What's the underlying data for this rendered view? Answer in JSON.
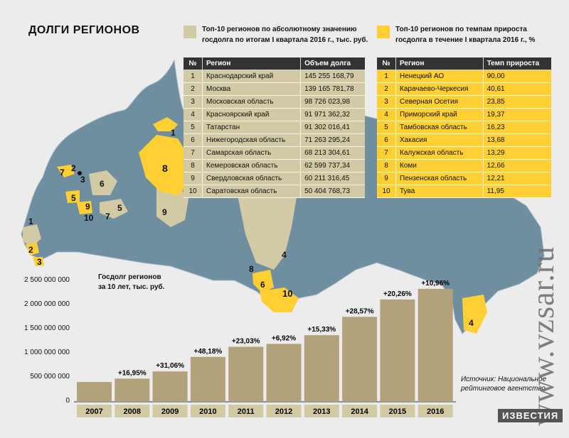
{
  "title": "ДОЛГИ РЕГИОНОВ",
  "colors": {
    "map": "#6f8fa0",
    "tan": "#d2caa4",
    "yellow": "#ffcf33",
    "bar": "#b1a27c"
  },
  "legend1": {
    "line1": "Топ-10 регионов по абсолютному значению",
    "line2": "госдолга по итогам I квартала 2016 г., тыс. руб."
  },
  "legend2": {
    "line1": "Топ-10 регионов по темпам прироста",
    "line2": "госдолга в течение I квартала 2016 г., %"
  },
  "table1": {
    "headers": [
      "№",
      "Регион",
      "Объем долга"
    ],
    "rows": [
      [
        "1",
        "Краснодарский край",
        "145 255 168,79"
      ],
      [
        "2",
        "Москва",
        "139 165 781,78"
      ],
      [
        "3",
        "Московская область",
        "98 726 023,98"
      ],
      [
        "4",
        "Красноярский край",
        "91 971 362,32"
      ],
      [
        "5",
        "Татарстан",
        "91 302 016,41"
      ],
      [
        "6",
        "Нижегородская область",
        "71 263 295,24"
      ],
      [
        "7",
        "Самарская область",
        "68 213 304,61"
      ],
      [
        "8",
        "Кемеровская область",
        "62 599 737,34"
      ],
      [
        "9",
        "Свердловская область",
        "60 211 316,45"
      ],
      [
        "10",
        "Саратовская область",
        "50 404 768,73"
      ]
    ]
  },
  "table2": {
    "headers": [
      "№",
      "Регион",
      "Темп прироста"
    ],
    "rows": [
      [
        "1",
        "Ненецкий АО",
        "90,00"
      ],
      [
        "2",
        "Карачаево-Черкесия",
        "40,61"
      ],
      [
        "3",
        "Северная Осетия",
        "23,85"
      ],
      [
        "4",
        "Приморский край",
        "19,37"
      ],
      [
        "5",
        "Тамбовская область",
        "16,23"
      ],
      [
        "6",
        "Хакасия",
        "13,68"
      ],
      [
        "7",
        "Калужская область",
        "13,29"
      ],
      [
        "8",
        "Коми",
        "12,66"
      ],
      [
        "9",
        "Пензенская область",
        "12,21"
      ],
      [
        "10",
        "Тува",
        "11,95"
      ]
    ]
  },
  "map_labels": {
    "tan": [
      "1",
      "2",
      "3",
      "4",
      "5",
      "6",
      "7",
      "8",
      "9",
      "10"
    ],
    "yellow": [
      "1",
      "2",
      "3",
      "4",
      "5",
      "6",
      "7",
      "8",
      "9",
      "10"
    ]
  },
  "chart_data": {
    "type": "bar",
    "title": "Госдолг регионов за 10 лет, тыс. руб.",
    "title_line1": "Госдолг регионов",
    "title_line2": "за 10 лет, тыс. руб.",
    "categories": [
      "2007",
      "2008",
      "2009",
      "2010",
      "2011",
      "2012",
      "2013",
      "2014",
      "2015",
      "2016"
    ],
    "values": [
      410000000,
      480000000,
      630000000,
      930000000,
      1140000000,
      1200000000,
      1380000000,
      1760000000,
      2120000000,
      2340000000
    ],
    "data_labels": [
      "",
      "+16,95%",
      "+31,06%",
      "+48,18%",
      "+23,03%",
      "+6,92%",
      "+15,33%",
      "+28,57%",
      "+20,26%",
      "+10,96%"
    ],
    "yticks": [
      "0",
      "500 000 000",
      "1 000 000 000",
      "1 500 000 000",
      "2 000 000 000",
      "2 500 000 000"
    ],
    "ylim": [
      0,
      2500000000
    ],
    "grid": false
  },
  "source": {
    "line1": "Источник: Национальное",
    "line2": "рейтинговое агентство"
  },
  "watermark": "www.vzsar.ru",
  "brand": "ИЗВЕСТИЯ"
}
